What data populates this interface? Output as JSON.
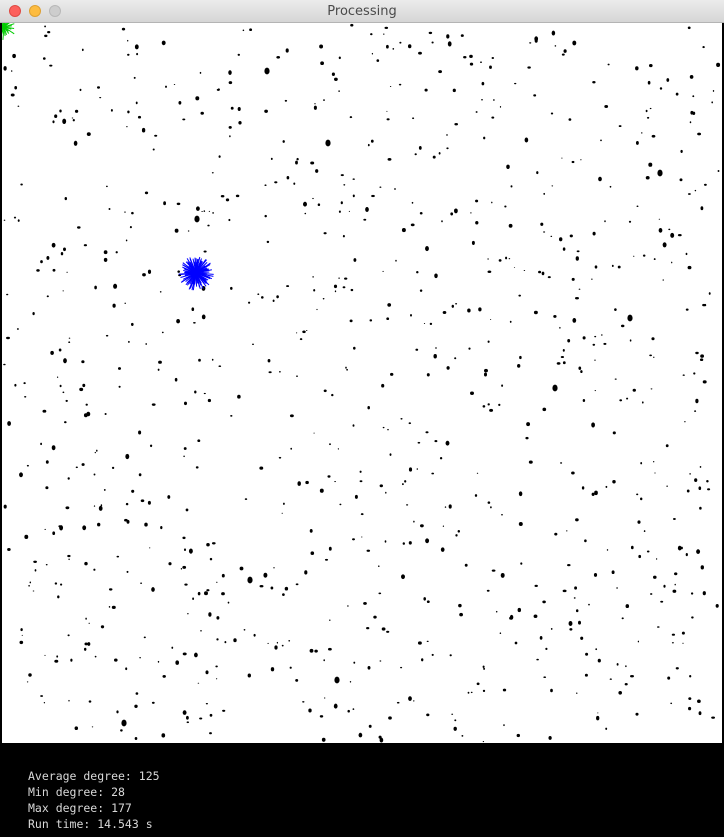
{
  "window": {
    "title": "Processing",
    "background": "#000000",
    "canvas_background": "#ffffff"
  },
  "graph": {
    "node_color": "#000000",
    "source_star_color": "#00cc00",
    "target_star_color": "#0000ff"
  },
  "stats": {
    "average_degree": "Average degree: 125",
    "min_degree": "Min degree: 28",
    "max_degree": "Max degree: 177",
    "run_time": "Run time: 14.543 s"
  }
}
